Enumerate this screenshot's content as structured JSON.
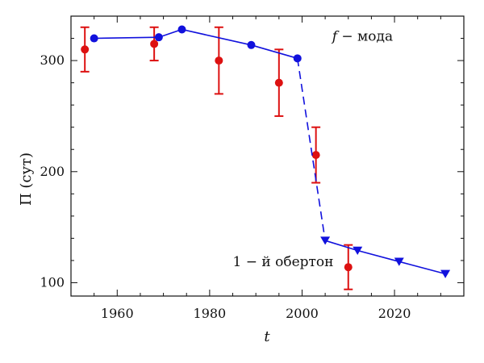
{
  "chart_data": {
    "type": "scatter",
    "title": "",
    "xlabel": "t",
    "ylabel": "Π (сут)",
    "xlim": [
      1950,
      2035
    ],
    "ylim": [
      88,
      340
    ],
    "xticks": [
      1960,
      1980,
      2000,
      2020
    ],
    "yticks": [
      100,
      200,
      300
    ],
    "grid": false,
    "annotations": [
      {
        "id": "f-mode",
        "prefix": "f",
        "text": " − мода",
        "x": 2006.5,
        "y": 318
      },
      {
        "id": "overtone",
        "text": "1 − й обертон",
        "x": 1985,
        "y": 115
      }
    ],
    "series": [
      {
        "id": "observed",
        "color": "#dd1111",
        "marker": "circle",
        "points": [
          {
            "x": 1953,
            "y": 310,
            "ylo": 290,
            "yhi": 330
          },
          {
            "x": 1968,
            "y": 315,
            "ylo": 300,
            "yhi": 330
          },
          {
            "x": 1982,
            "y": 300,
            "ylo": 270,
            "yhi": 330
          },
          {
            "x": 1995,
            "y": 280,
            "ylo": 250,
            "yhi": 310
          },
          {
            "x": 2003,
            "y": 215,
            "ylo": 190,
            "yhi": 240
          },
          {
            "x": 2010,
            "y": 114,
            "ylo": 94,
            "yhi": 134
          }
        ]
      },
      {
        "id": "f-mode-model",
        "color": "#1111dd",
        "marker": "circle",
        "line": "solid",
        "points": [
          {
            "x": 1955,
            "y": 320
          },
          {
            "x": 1969,
            "y": 321
          },
          {
            "x": 1974,
            "y": 328
          },
          {
            "x": 1989,
            "y": 314
          },
          {
            "x": 1999,
            "y": 302
          }
        ]
      },
      {
        "id": "transition",
        "color": "#1111dd",
        "line": "dashed",
        "points": [
          {
            "x": 1999,
            "y": 302
          },
          {
            "x": 2005,
            "y": 138
          }
        ]
      },
      {
        "id": "overtone-model",
        "color": "#1111dd",
        "marker": "triangle-down",
        "line": "solid",
        "points": [
          {
            "x": 2005,
            "y": 138
          },
          {
            "x": 2012,
            "y": 129
          },
          {
            "x": 2021,
            "y": 119
          },
          {
            "x": 2031,
            "y": 108
          }
        ]
      }
    ]
  }
}
